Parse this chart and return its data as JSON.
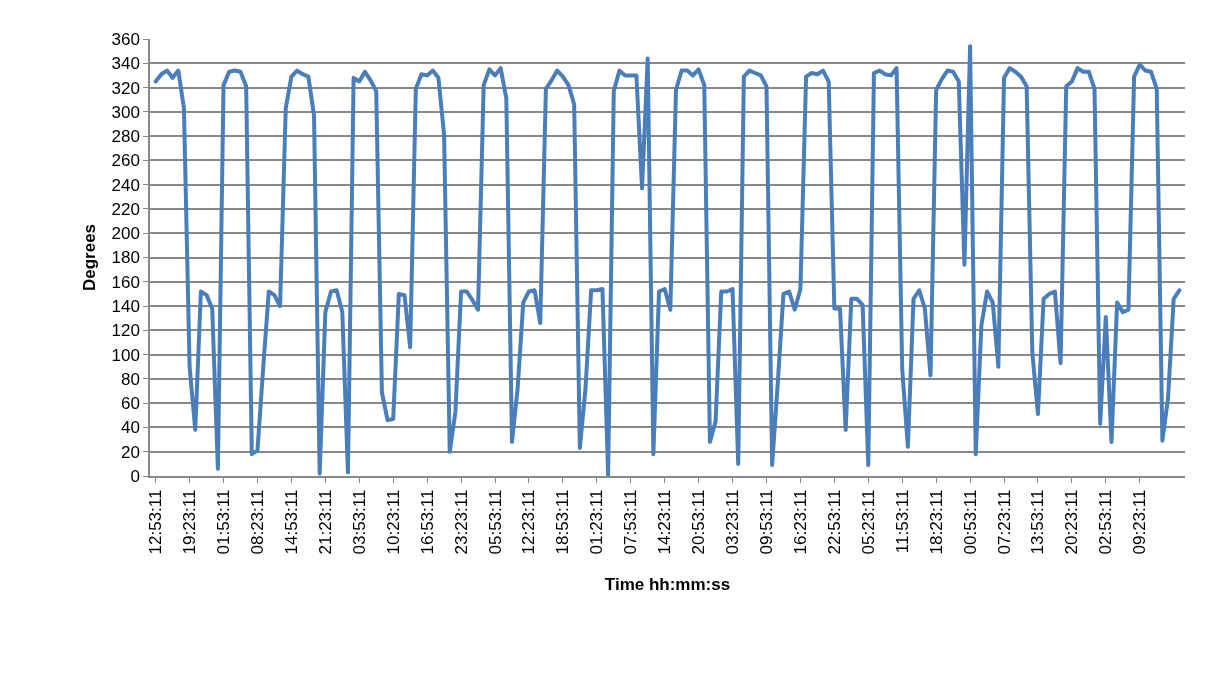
{
  "chart_data": {
    "type": "line",
    "xlabel": "Time hh:mm:ss",
    "ylabel": "Degrees",
    "ylim": [
      0,
      360
    ],
    "yticks": [
      0,
      20,
      40,
      60,
      80,
      100,
      120,
      140,
      160,
      180,
      200,
      220,
      240,
      260,
      280,
      300,
      320,
      340,
      360
    ],
    "grid": "y",
    "marker": "none",
    "line_style": "solid",
    "categories": [
      "12:53:11",
      null,
      null,
      null,
      null,
      null,
      "19:23:11",
      null,
      null,
      null,
      null,
      null,
      "01:53:11",
      null,
      null,
      null,
      null,
      null,
      "08:23:11",
      null,
      null,
      null,
      null,
      null,
      "14:53:11",
      null,
      null,
      null,
      null,
      null,
      "21:23:11",
      null,
      null,
      null,
      null,
      null,
      "03:53:11",
      null,
      null,
      null,
      null,
      null,
      "10:23:11",
      null,
      null,
      null,
      null,
      null,
      "16:53:11",
      null,
      null,
      null,
      null,
      null,
      "23:23:11",
      null,
      null,
      null,
      null,
      null,
      "05:53:11",
      null,
      null,
      null,
      null,
      null,
      "12:23:11",
      null,
      null,
      null,
      null,
      null,
      "18:53:11",
      null,
      null,
      null,
      null,
      null,
      "01:23:11",
      null,
      null,
      null,
      null,
      null,
      "07:53:11",
      null,
      null,
      null,
      null,
      null,
      "14:23:11",
      null,
      null,
      null,
      null,
      null,
      "20:53:11",
      null,
      null,
      null,
      null,
      null,
      "03:23:11",
      null,
      null,
      null,
      null,
      null,
      "09:53:11",
      null,
      null,
      null,
      null,
      null,
      "16:23:11",
      null,
      null,
      null,
      null,
      null,
      "22:53:11",
      null,
      null,
      null,
      null,
      null,
      "05:23:11",
      null,
      null,
      null,
      null,
      null,
      "11:53:11",
      null,
      null,
      null,
      null,
      null,
      "18:23:11",
      null,
      null,
      null,
      null,
      null,
      "00:53:11",
      null,
      null,
      null,
      null,
      null,
      "07:23:11",
      null,
      null,
      null,
      null,
      null,
      "13:53:11",
      null,
      null,
      null,
      null,
      null,
      "20:23:11",
      null,
      null,
      null,
      null,
      null,
      "02:53:11",
      null,
      null,
      null,
      null,
      null,
      "09:23:11",
      null,
      null,
      null,
      null,
      null,
      null,
      null
    ],
    "series": [
      {
        "color": "#4a7ebb",
        "values": [
          325,
          331,
          334,
          328,
          334,
          303,
          90,
          38,
          152,
          149,
          138,
          6,
          322,
          333,
          334,
          333,
          321,
          18,
          21,
          88,
          152,
          149,
          140,
          303,
          329,
          334,
          331,
          329,
          297,
          2,
          135,
          152,
          153,
          135,
          3,
          328,
          325,
          333,
          326,
          317,
          69,
          46,
          47,
          150,
          149,
          106,
          319,
          331,
          330,
          334,
          328,
          281,
          20,
          53,
          152,
          152,
          145,
          137,
          322,
          335,
          330,
          336,
          311,
          28,
          72,
          143,
          152,
          153,
          126,
          319,
          326,
          334,
          329,
          322,
          306,
          23,
          72,
          153,
          153,
          154,
          1,
          317,
          334,
          330,
          330,
          330,
          237,
          344,
          18,
          152,
          154,
          137,
          318,
          334,
          334,
          330,
          335,
          322,
          28,
          45,
          152,
          152,
          154,
          10,
          329,
          334,
          332,
          330,
          321,
          9,
          77,
          150,
          152,
          137,
          154,
          329,
          332,
          331,
          334,
          325,
          138,
          138,
          38,
          146,
          146,
          141,
          9,
          332,
          334,
          331,
          330,
          336,
          88,
          24,
          146,
          153,
          138,
          83,
          318,
          327,
          334,
          333,
          325,
          174,
          354,
          18,
          124,
          152,
          143,
          90,
          328,
          336,
          333,
          329,
          321,
          102,
          51,
          146,
          150,
          152,
          93,
          321,
          325,
          336,
          333,
          333,
          319,
          43,
          131,
          28,
          143,
          135,
          137,
          329,
          339,
          334,
          333,
          319,
          29,
          64,
          146,
          153
        ]
      }
    ]
  }
}
